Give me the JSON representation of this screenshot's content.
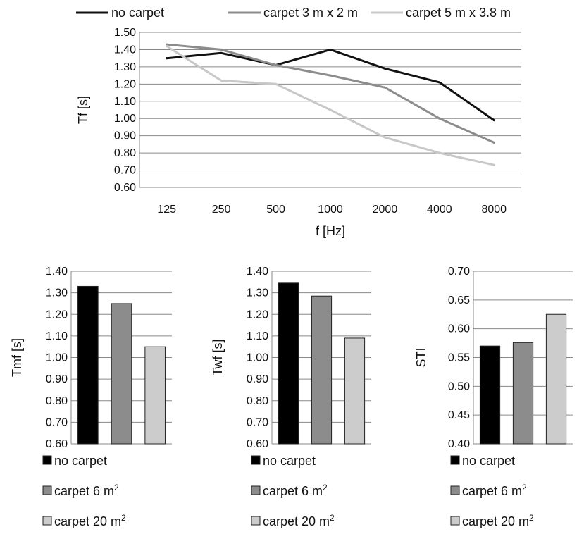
{
  "chart_data": [
    {
      "type": "line",
      "xlabel": "f [Hz]",
      "ylabel": "Tf [s]",
      "categories": [
        "125",
        "250",
        "500",
        "1000",
        "2000",
        "4000",
        "8000"
      ],
      "ylim": [
        0.6,
        1.5
      ],
      "yticks": [
        "0.60",
        "0.70",
        "0.80",
        "0.90",
        "1.00",
        "1.10",
        "1.20",
        "1.30",
        "1.40",
        "1.50"
      ],
      "grid": true,
      "legend_position": "top",
      "series": [
        {
          "name": "no carpet",
          "color": "#111111",
          "values": [
            1.35,
            1.38,
            1.31,
            1.4,
            1.29,
            1.21,
            0.99
          ]
        },
        {
          "name": "carpet 3 m x 2 m",
          "color": "#8c8c8c",
          "values": [
            1.43,
            1.4,
            1.31,
            1.25,
            1.18,
            1.0,
            0.86
          ]
        },
        {
          "name": "carpet 5 m x 3.8 m",
          "color": "#c8c8c8",
          "values": [
            1.42,
            1.22,
            1.2,
            1.05,
            0.89,
            0.8,
            0.73
          ]
        }
      ]
    },
    {
      "type": "bar",
      "ylabel": "Tmf [s]",
      "ylim": [
        0.6,
        1.4
      ],
      "yticks": [
        "0.60",
        "0.70",
        "0.80",
        "0.90",
        "1.00",
        "1.10",
        "1.20",
        "1.30",
        "1.40"
      ],
      "grid": true,
      "legend_position": "bottom",
      "series": [
        {
          "name": "no carpet",
          "color": "#000000",
          "value": 1.33
        },
        {
          "name": "carpet 6 m",
          "sup": "2",
          "color": "#8c8c8c",
          "value": 1.25
        },
        {
          "name": "carpet 20 m",
          "sup": "2",
          "color": "#cccccc",
          "value": 1.05
        }
      ]
    },
    {
      "type": "bar",
      "ylabel": "Twf [s]",
      "ylim": [
        0.6,
        1.4
      ],
      "yticks": [
        "0.60",
        "0.70",
        "0.80",
        "0.90",
        "1.00",
        "1.10",
        "1.20",
        "1.30",
        "1.40"
      ],
      "grid": true,
      "legend_position": "bottom",
      "series": [
        {
          "name": "no carpet",
          "color": "#000000",
          "value": 1.345
        },
        {
          "name": "carpet 6 m",
          "sup": "2",
          "color": "#8c8c8c",
          "value": 1.285
        },
        {
          "name": "carpet 20 m",
          "sup": "2",
          "color": "#cccccc",
          "value": 1.09
        }
      ]
    },
    {
      "type": "bar",
      "ylabel": "STI",
      "ylim": [
        0.4,
        0.7
      ],
      "yticks": [
        "0.40",
        "0.45",
        "0.50",
        "0.55",
        "0.60",
        "0.65",
        "0.70"
      ],
      "grid": true,
      "legend_position": "bottom",
      "series": [
        {
          "name": "no carpet",
          "color": "#000000",
          "value": 0.57
        },
        {
          "name": "carpet 6 m",
          "sup": "2",
          "color": "#8c8c8c",
          "value": 0.576
        },
        {
          "name": "carpet 20 m",
          "sup": "2",
          "color": "#cccccc",
          "value": 0.625
        }
      ]
    }
  ]
}
